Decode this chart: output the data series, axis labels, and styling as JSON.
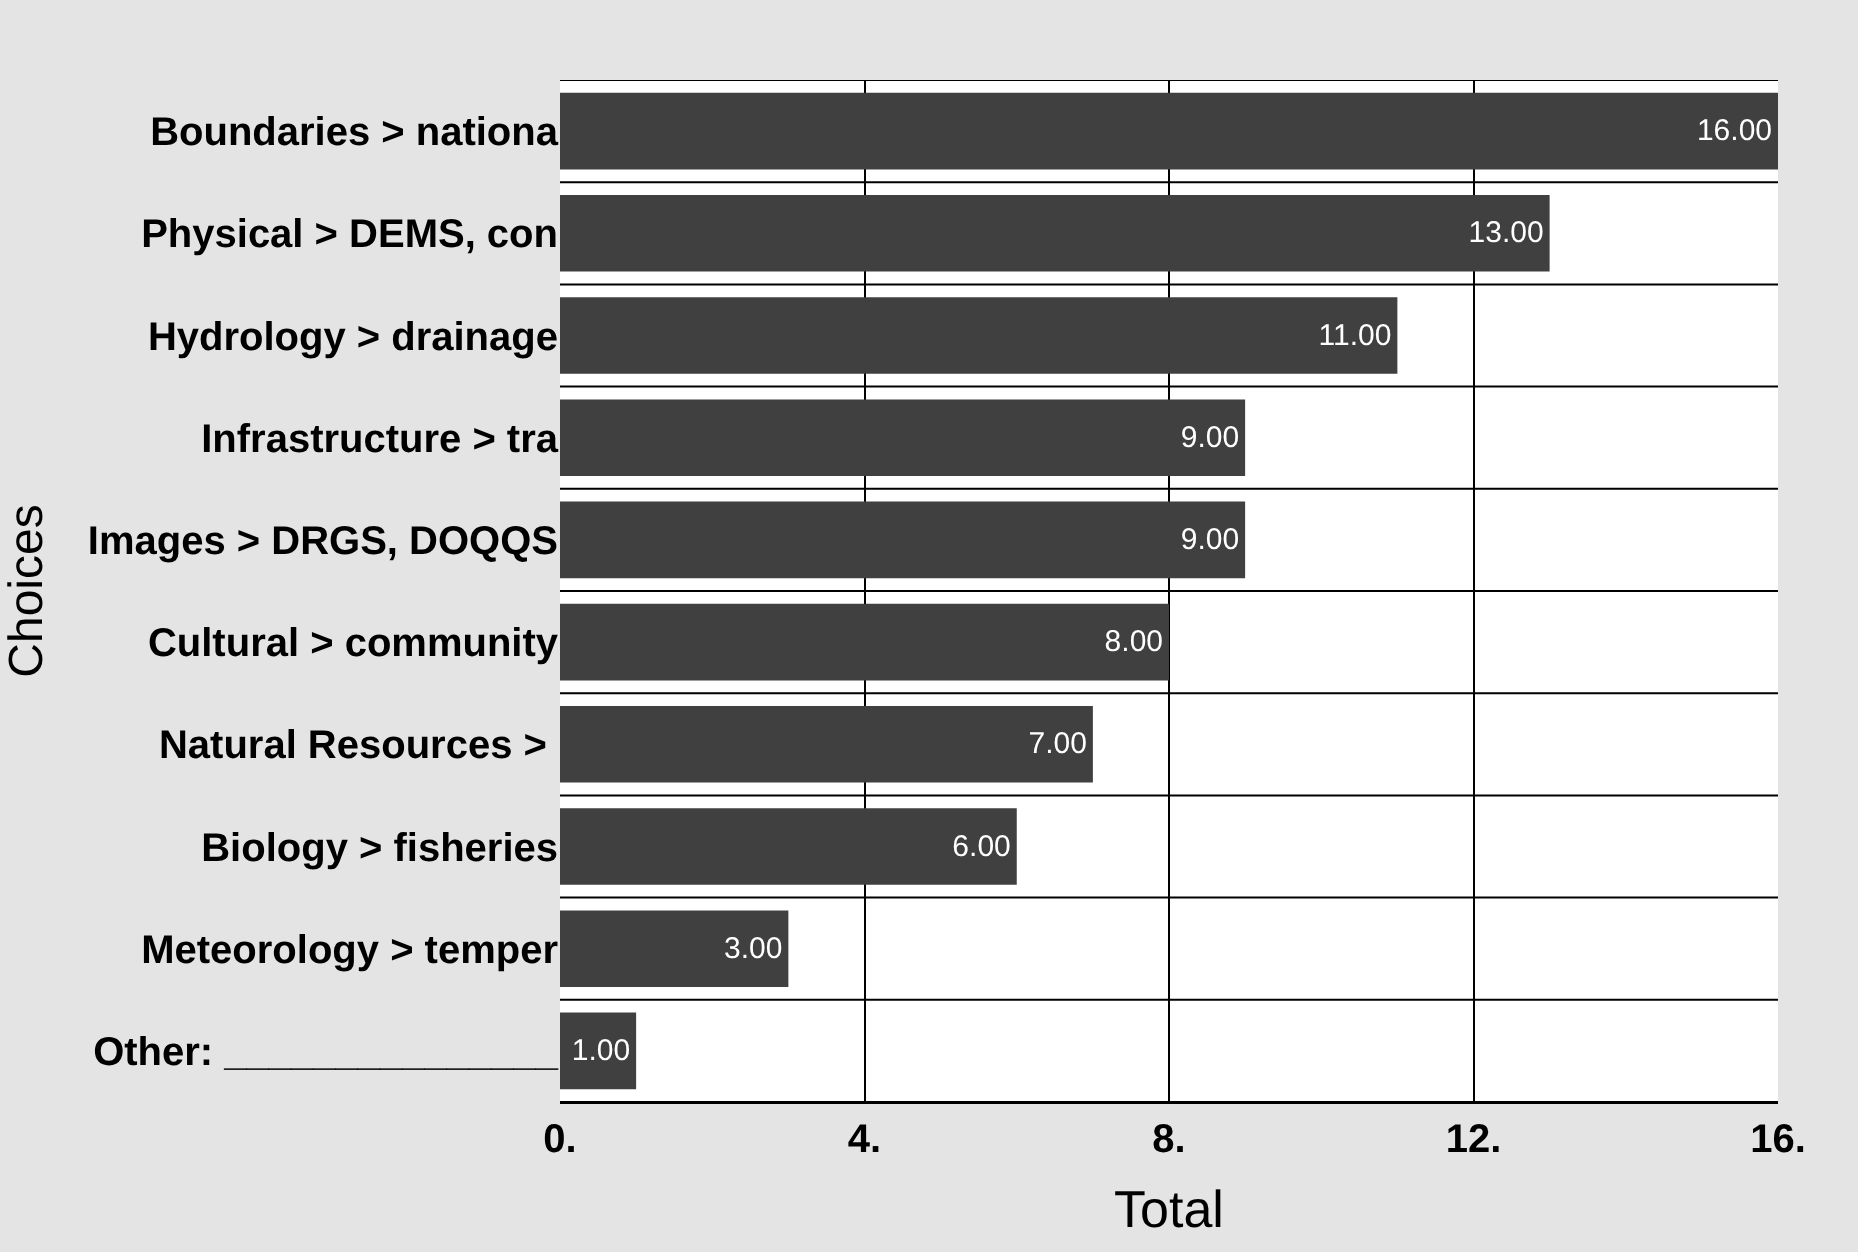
{
  "chart_data": {
    "type": "bar",
    "orientation": "horizontal",
    "xlabel": "Total",
    "ylabel": "Choices",
    "categories": [
      "Boundaries > nationa",
      "Physical > DEMS, con",
      "Hydrology > drainage",
      "Infrastructure > tra",
      "Images > DRGS, DOQQS",
      "Cultural > community",
      "Natural Resources > ",
      "Biology > fisheries",
      "Meteorology > temper",
      "Other: _______________"
    ],
    "values": [
      16,
      13,
      11,
      9,
      9,
      8,
      7,
      6,
      3,
      1
    ],
    "value_labels": [
      "16.00",
      "13.00",
      "11.00",
      "9.00",
      "9.00",
      "8.00",
      "7.00",
      "6.00",
      "3.00",
      "1.00"
    ],
    "color": "#404040",
    "xlim": [
      0,
      16
    ],
    "xticks": [
      {
        "value": 0,
        "label": "0."
      },
      {
        "value": 4,
        "label": "4."
      },
      {
        "value": 8,
        "label": "8."
      },
      {
        "value": 12,
        "label": "12."
      },
      {
        "value": 16,
        "label": "16."
      }
    ],
    "grid": true
  }
}
